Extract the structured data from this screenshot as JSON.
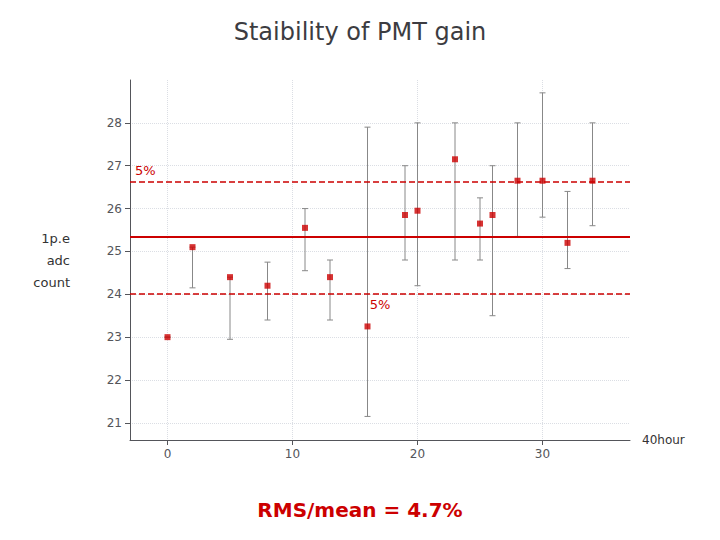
{
  "chart_data": {
    "type": "scatter",
    "title": "Staibility of PMT gain",
    "xlabel": "40hour",
    "ylabel": [
      "1p.e",
      "adc",
      "count"
    ],
    "xlim": [
      -3,
      37
    ],
    "xticks": [
      0,
      10,
      20,
      30
    ],
    "ylim": [
      20.6,
      29.0
    ],
    "yticks": [
      21,
      22,
      23,
      24,
      25,
      26,
      27,
      28
    ],
    "grid": true,
    "x": [
      0,
      2,
      5,
      8,
      11,
      13,
      16,
      19,
      20,
      23,
      25,
      26,
      28,
      30,
      32,
      34
    ],
    "series": [
      {
        "values": [
          23.0,
          25.1,
          24.4,
          24.2,
          25.55,
          24.4,
          23.25,
          25.85,
          25.95,
          27.15,
          25.65,
          25.85,
          26.65,
          26.65,
          25.2,
          26.65
        ],
        "error_lo": [
          0.0,
          0.95,
          1.45,
          0.8,
          1.0,
          1.0,
          2.1,
          1.05,
          1.75,
          2.35,
          0.85,
          2.35,
          1.3,
          0.85,
          0.6,
          1.05
        ],
        "error_hi": [
          0.0,
          0.0,
          0.0,
          0.55,
          0.45,
          0.4,
          4.65,
          1.15,
          2.05,
          0.85,
          0.6,
          1.15,
          1.35,
          2.05,
          1.2,
          1.35
        ],
        "color": "#cc0000",
        "error_color": "#888888",
        "marker": "square"
      }
    ],
    "reference_lines": [
      {
        "y": 25.35,
        "color": "#cc0000",
        "line_style": "solid"
      },
      {
        "y": 26.62,
        "color": "#cc0000",
        "line_style": "dashed",
        "label": "5%"
      },
      {
        "y": 24.02,
        "color": "#cc0000",
        "line_style": "dashed",
        "label": "5%"
      }
    ],
    "annotations": [
      {
        "text": "RMS/mean = 4.7%",
        "color": "#cc0000"
      }
    ]
  }
}
